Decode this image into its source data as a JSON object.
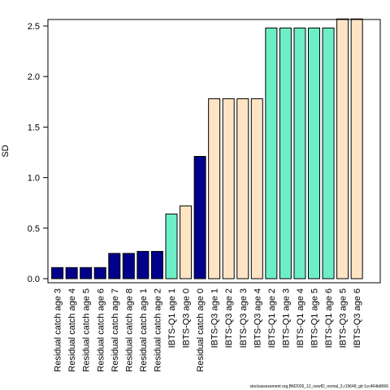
{
  "chart_data": {
    "type": "bar",
    "ylabel": "SD",
    "xlabel": "",
    "title": "",
    "ylim": [
      0,
      2.6
    ],
    "yticks": [
      0.0,
      0.5,
      1.0,
      1.5,
      2.0,
      2.5
    ],
    "ytick_labels": [
      "0.0",
      "0.5",
      "1.0",
      "1.5",
      "2.0",
      "2.5"
    ],
    "categories": [
      "Residual catch age 3",
      "Residual catch age 4",
      "Residual catch age 5",
      "Residual catch age 6",
      "Residual catch age 7",
      "Residual catch age 8",
      "Residual catch age 1",
      "Residual catch age 2",
      "IBTS-Q1 age 1",
      "IBTS-Q3 age 0",
      "Residual catch age 0",
      "IBTS-Q3 age 1",
      "IBTS-Q3 age 2",
      "IBTS-Q3 age 3",
      "IBTS-Q3 age 4",
      "IBTS-Q1 age 2",
      "IBTS-Q1 age 3",
      "IBTS-Q1 age 4",
      "IBTS-Q1 age 5",
      "IBTS-Q1 age 6",
      "IBTS-Q3 age 5",
      "IBTS-Q3 age 6"
    ],
    "values": [
      0.11,
      0.11,
      0.11,
      0.11,
      0.25,
      0.25,
      0.27,
      0.27,
      0.64,
      0.72,
      1.21,
      1.78,
      1.78,
      1.78,
      1.78,
      2.48,
      2.48,
      2.48,
      2.48,
      2.48,
      2.57,
      2.57
    ],
    "groups": [
      "catch",
      "catch",
      "catch",
      "catch",
      "catch",
      "catch",
      "catch",
      "catch",
      "ibts_q1",
      "ibts_q3",
      "catch",
      "ibts_q3",
      "ibts_q3",
      "ibts_q3",
      "ibts_q3",
      "ibts_q1",
      "ibts_q1",
      "ibts_q1",
      "ibts_q1",
      "ibts_q1",
      "ibts_q3",
      "ibts_q3"
    ],
    "colors": {
      "catch": "#00008B",
      "ibts_q1": "#6CEEC6",
      "ibts_q3": "#FFE4C4"
    },
    "grid": false,
    "legend": "none"
  },
  "footer": {
    "text": "stockassessment.org,BM2026_12_newID_nomal_2,r19649_git:1cc464b8066"
  }
}
